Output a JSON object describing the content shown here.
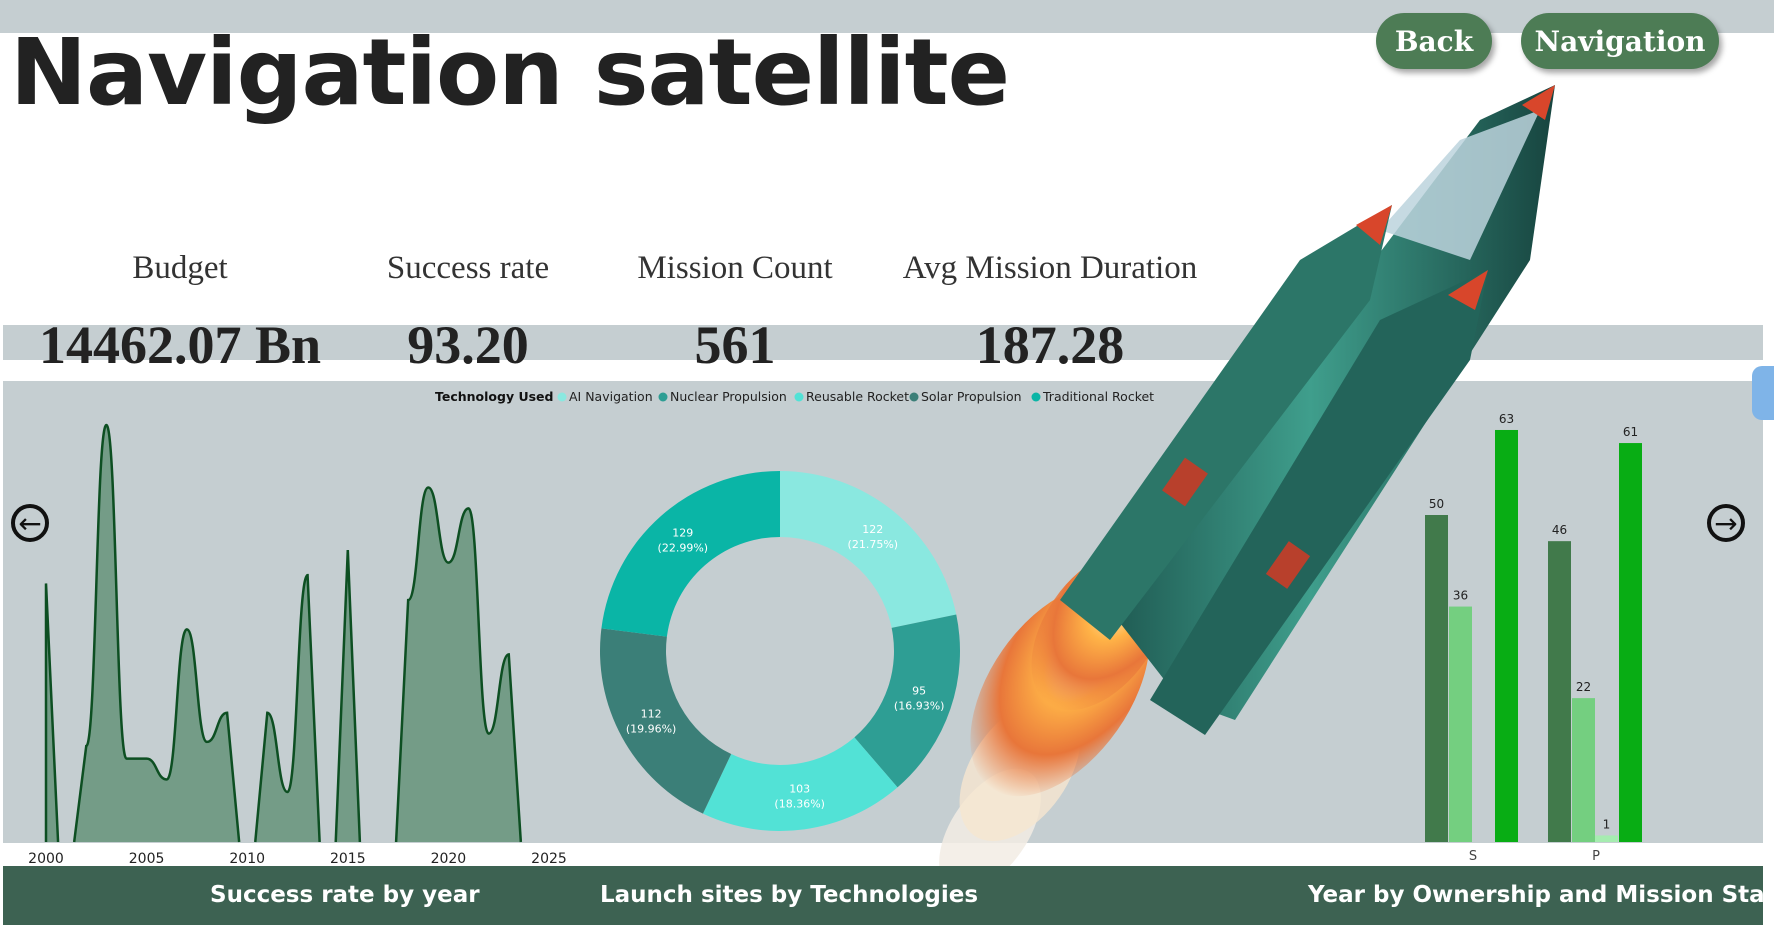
{
  "header": {
    "title": "Navigation satellite",
    "back_label": "Back",
    "navigation_label": "Navigation"
  },
  "kpis": [
    {
      "label": "Budget",
      "value": "14462.07 Bn"
    },
    {
      "label": "Success rate",
      "value": "93.20"
    },
    {
      "label": "Mission Count",
      "value": "561"
    },
    {
      "label": "Avg Mission Duration",
      "value": "187.28"
    }
  ],
  "footer": {
    "area_title": "Success rate by year",
    "donut_title": "Launch sites by Technologies",
    "bar_title": "Year by Ownership and Mission Status"
  },
  "colors": {
    "area_fill": "#749c87",
    "area_stroke": "#0d4f22",
    "bar_dark": "#417a4b",
    "bar_light": "#74cf80",
    "bar_bright": "#08ad14",
    "donut": [
      "#8ae8e0",
      "#2e9e94",
      "#52e2d6",
      "#3b7f78",
      "#0ab5a6"
    ]
  },
  "icons": {
    "left": "arrow-left-circle-icon",
    "right": "arrow-right-circle-icon",
    "rocket": "rocket-icon"
  },
  "chart_data": [
    {
      "type": "area",
      "x": [
        2000,
        2001,
        2002,
        2003,
        2004,
        2005,
        2006,
        2007,
        2008,
        2009,
        2010,
        2011,
        2012,
        2013,
        2014,
        2015,
        2016,
        2017,
        2018,
        2019,
        2020,
        2021,
        2022,
        2023,
        2024,
        2025
      ],
      "y": [
        62,
        null,
        23,
        100,
        20,
        20,
        15,
        51,
        24,
        31,
        null,
        31,
        12,
        64,
        null,
        70,
        null,
        null,
        58,
        85,
        67,
        80,
        26,
        45,
        null,
        null
      ],
      "x_ticks": [
        "2000",
        "2005",
        "2010",
        "2015",
        "2020",
        "2025"
      ],
      "title": "",
      "xlabel": "",
      "ylabel": "",
      "grid": false
    },
    {
      "type": "pie",
      "legend_title": "Technology Used",
      "legend_placement": "top",
      "slices": [
        {
          "name": "AI Navigation",
          "value": 122,
          "label": "122\n(21.75%)"
        },
        {
          "name": "Nuclear Propulsion",
          "value": 95,
          "label": "95\n(16.93%)"
        },
        {
          "name": "Reusable Rocket",
          "value": 103,
          "label": "103\n(18.36%)"
        },
        {
          "name": "Solar Propulsion",
          "value": 112,
          "label": "112\n(19.96%)"
        },
        {
          "name": "Traditional Rocket",
          "value": 129,
          "label": "129\n(22.99%)"
        }
      ]
    },
    {
      "type": "bar",
      "categories": [
        "S",
        "P"
      ],
      "series": [
        {
          "values": [
            50,
            46
          ]
        },
        {
          "values": [
            36,
            22
          ]
        },
        {
          "values": [
            null,
            1
          ]
        },
        {
          "values": [
            63,
            61
          ]
        }
      ],
      "ylim": [
        0,
        70
      ],
      "xlabel": "",
      "ylabel": ""
    }
  ]
}
